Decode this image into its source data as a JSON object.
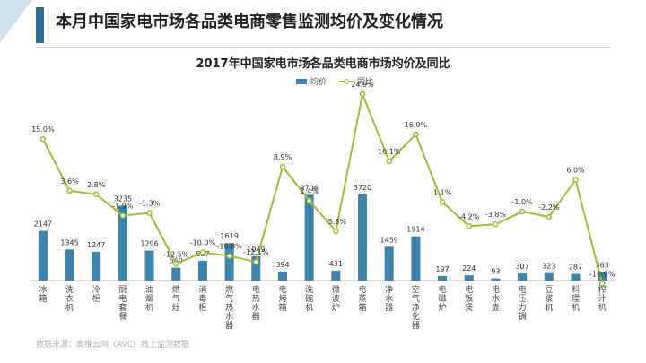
{
  "header": {
    "title": "本月中国家电市场各品类电商零售监测均价及变化情况"
  },
  "source": "数据来源：奥维云网（AVC）线上监测数据",
  "colors": {
    "bar": "#3a84ad",
    "line": "#9ebf2e",
    "header_bar": "#2f6f95"
  },
  "chart_data": {
    "type": "bar",
    "title": "2017年中国家电市场各品类电商市场均价及同比",
    "categories": [
      "冰箱",
      "洗衣机",
      "冷柜",
      "厨电套餐",
      "油烟机",
      "燃气灶",
      "消毒柜",
      "燃气热水器",
      "电热水器",
      "电烤箱",
      "洗碗机",
      "微波炉",
      "电蒸箱",
      "净水器",
      "空气净化器",
      "电磁炉",
      "电饭煲",
      "电水壶",
      "电压力锅",
      "豆浆机",
      "料理机",
      "榨汁机"
    ],
    "series": [
      {
        "name": "均价",
        "type": "bar",
        "values": [
          2147,
          1345,
          1247,
          3235,
          1296,
          560,
          857,
          1619,
          1049,
          394,
          3706,
          431,
          3720,
          1459,
          1914,
          197,
          224,
          93,
          307,
          323,
          287,
          363
        ],
        "labels": [
          "2147",
          "1345",
          "1247",
          "3235",
          "1296",
          "560",
          "857",
          "1619",
          "1049",
          "394",
          "3706",
          "431",
          "3720",
          "1459",
          "1914",
          "197",
          "224",
          "93",
          "307",
          "323",
          "287",
          "363"
        ]
      },
      {
        "name": "同比",
        "type": "line",
        "values": [
          15.0,
          3.6,
          2.8,
          -1.9,
          -1.3,
          -12.5,
          -10.0,
          -10.8,
          -12.1,
          8.9,
          1.4,
          -5.3,
          24.9,
          10.1,
          16.0,
          1.1,
          -4.2,
          -3.8,
          -1.0,
          -2.2,
          6.0,
          -16.9
        ],
        "labels": [
          "15.0%",
          "3.6%",
          "2.8%",
          "-1.9%",
          "-1.3%",
          "-12.5%",
          "-10.0%",
          "-10.8%",
          "-12.1%",
          "8.9%",
          "1.4%",
          "-5.3%",
          "24.9%",
          "10.1%",
          "16.0%",
          "1.1%",
          "-4.2%",
          "-3.8%",
          "-1.0%",
          "-2.2%",
          "6.0%",
          "-16.9%"
        ]
      }
    ],
    "grid": false,
    "legend": "top-center"
  }
}
